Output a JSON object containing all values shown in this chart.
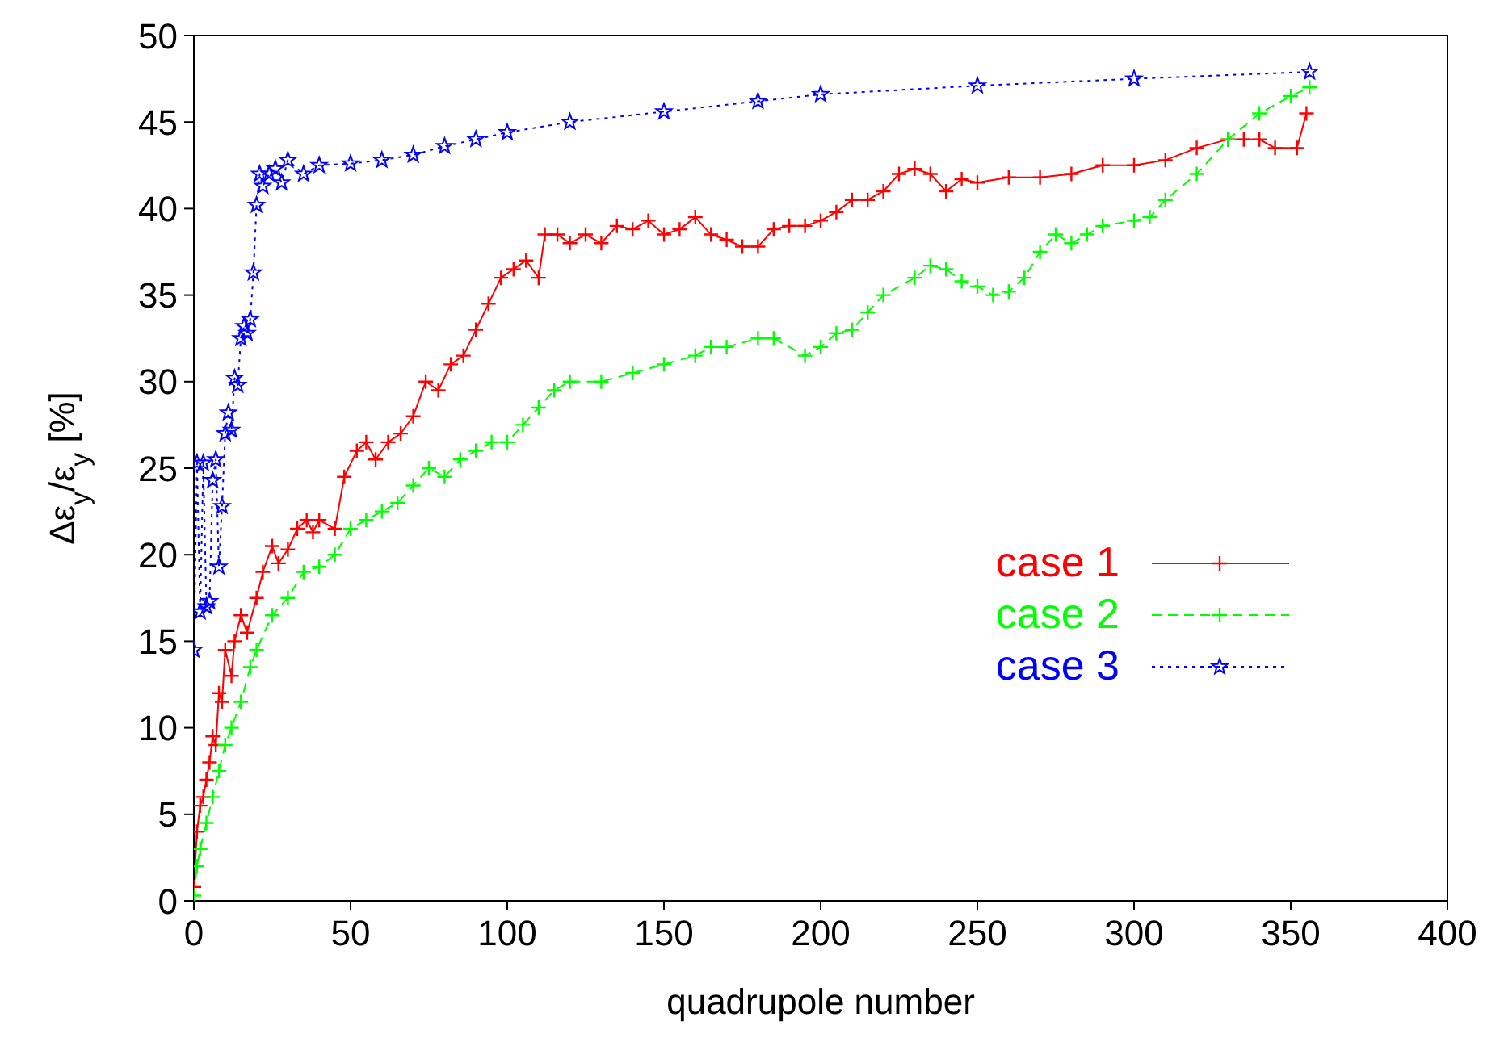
{
  "chart_data": {
    "type": "line",
    "xlabel": "quadrupole number",
    "ylabel": "Δε$_{y}$/ε$_{y}$ [%]",
    "xlim": [
      0,
      400
    ],
    "xticks": [
      0,
      50,
      100,
      150,
      200,
      250,
      300,
      350,
      400
    ],
    "ylim": [
      0,
      50
    ],
    "yticks": [
      0,
      5,
      10,
      15,
      20,
      25,
      30,
      35,
      40,
      45,
      50
    ],
    "grid": false,
    "legend": "right",
    "series": [
      {
        "name": "case 1",
        "color": "#ff0000",
        "marker": "cross",
        "line_style": "solid",
        "x": [
          0,
          1,
          2,
          3,
          4,
          5,
          6,
          7,
          8,
          9,
          10,
          12,
          13,
          15,
          17,
          20,
          22,
          25,
          27,
          30,
          33,
          36,
          38,
          40,
          45,
          48,
          52,
          55,
          58,
          62,
          66,
          70,
          74,
          78,
          82,
          86,
          90,
          94,
          98,
          102,
          106,
          110,
          112,
          116,
          120,
          125,
          130,
          135,
          140,
          145,
          150,
          155,
          160,
          165,
          170,
          175,
          180,
          185,
          190,
          195,
          200,
          205,
          210,
          215,
          220,
          225,
          230,
          235,
          240,
          245,
          250,
          260,
          270,
          280,
          290,
          300,
          310,
          320,
          330,
          335,
          340,
          345,
          352,
          355
        ],
        "values": [
          0.8,
          4,
          5.5,
          6,
          7,
          8,
          9.5,
          9,
          12,
          11.5,
          14.5,
          13,
          15,
          16.5,
          15.5,
          17.5,
          19,
          20.5,
          19.5,
          20.3,
          21.5,
          22,
          21.3,
          22,
          21.5,
          24.5,
          26,
          26.5,
          25.5,
          26.5,
          27,
          28,
          30,
          29.5,
          31,
          31.5,
          33,
          34.5,
          36,
          36.5,
          37,
          36,
          38.5,
          38.5,
          38,
          38.5,
          38,
          39,
          38.8,
          39.3,
          38.5,
          38.8,
          39.5,
          38.5,
          38.2,
          37.8,
          37.8,
          38.8,
          39,
          39,
          39.3,
          39.8,
          40.5,
          40.5,
          41,
          42,
          42.3,
          42,
          41,
          41.7,
          41.5,
          41.8,
          41.8,
          42,
          42.5,
          42.5,
          42.8,
          43.5,
          44,
          44,
          44,
          43.5,
          43.5,
          45.5
        ]
      },
      {
        "name": "case 2",
        "color": "#00ff00",
        "marker": "cross",
        "line_style": "dashed",
        "x": [
          0,
          1,
          2,
          4,
          6,
          8,
          10,
          12,
          15,
          18,
          20,
          25,
          30,
          35,
          40,
          45,
          50,
          55,
          60,
          65,
          70,
          75,
          80,
          85,
          90,
          95,
          100,
          105,
          110,
          115,
          120,
          130,
          140,
          150,
          160,
          165,
          170,
          180,
          185,
          195,
          200,
          205,
          210,
          215,
          220,
          230,
          235,
          240,
          245,
          250,
          255,
          260,
          265,
          270,
          275,
          280,
          285,
          290,
          300,
          305,
          310,
          320,
          330,
          340,
          350,
          356
        ],
        "values": [
          0.3,
          2,
          3,
          4.5,
          6,
          7.5,
          9,
          10,
          11.5,
          13.5,
          14.5,
          16.5,
          17.5,
          19,
          19.3,
          20,
          21.5,
          22,
          22.5,
          23,
          24,
          25,
          24.5,
          25.5,
          26,
          26.5,
          26.5,
          27.5,
          28.5,
          29.5,
          30,
          30,
          30.5,
          31,
          31.5,
          32,
          32,
          32.5,
          32.5,
          31.5,
          32,
          32.8,
          33,
          34,
          35,
          36,
          36.7,
          36.5,
          35.8,
          35.5,
          35,
          35.2,
          36,
          37.5,
          38.5,
          38,
          38.5,
          39,
          39.3,
          39.5,
          40.5,
          42,
          44,
          45.5,
          46.5,
          47
        ]
      },
      {
        "name": "case 3",
        "color": "#0000ff",
        "marker": "star",
        "line_style": "dotted",
        "x": [
          0,
          1,
          2,
          3,
          4,
          5,
          6,
          7,
          8,
          9,
          10,
          11,
          12,
          13,
          14,
          15,
          16,
          17,
          18,
          19,
          20,
          21,
          22,
          24,
          26,
          28,
          30,
          35,
          40,
          50,
          60,
          70,
          80,
          90,
          100,
          120,
          150,
          180,
          200,
          250,
          300,
          356
        ],
        "values": [
          14.5,
          25.3,
          16.7,
          25.3,
          17,
          17.3,
          24.3,
          25.5,
          19.3,
          22.8,
          27,
          28.2,
          27.2,
          30.2,
          29.8,
          32.5,
          33.2,
          32.8,
          33.6,
          36.3,
          40.2,
          42,
          41.3,
          42,
          42.3,
          41.5,
          42.8,
          42,
          42.5,
          42.6,
          42.8,
          43.1,
          43.6,
          44,
          44.4,
          45,
          45.6,
          46.2,
          46.6,
          47.1,
          47.5,
          47.9
        ]
      }
    ]
  }
}
